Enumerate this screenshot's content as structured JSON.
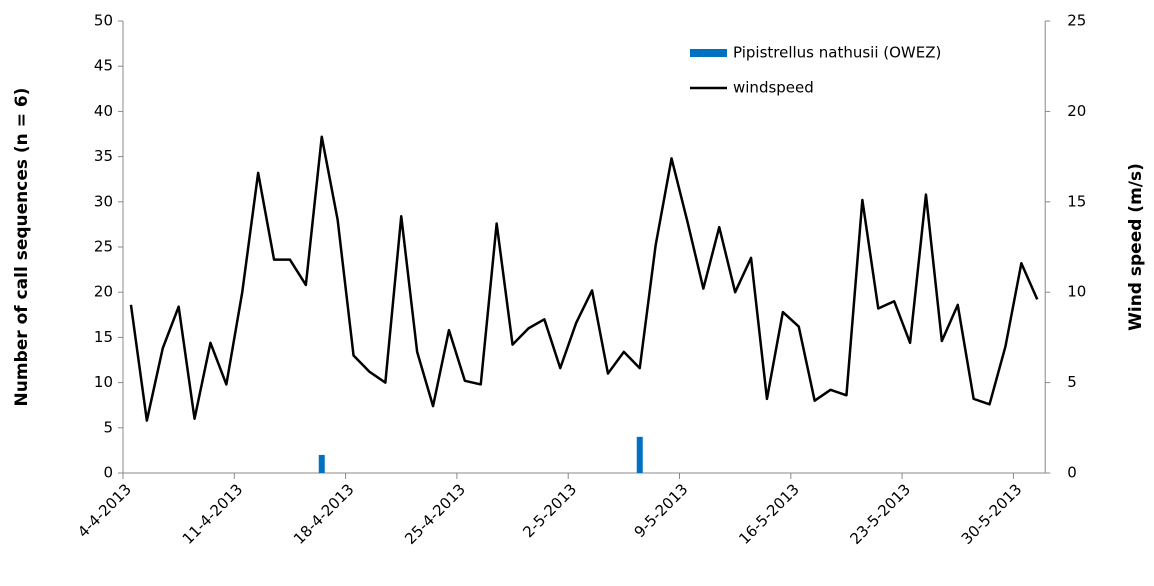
{
  "chart_data": {
    "type": "bar",
    "y_label": "Number of call sequences (n = 6)",
    "y2_label": "Wind speed (m/s)",
    "categories": [
      "4-4-2013",
      null,
      null,
      null,
      null,
      null,
      null,
      "11-4-2013",
      null,
      null,
      null,
      null,
      null,
      null,
      "18-4-2013",
      null,
      null,
      null,
      null,
      null,
      null,
      "25-4-2013",
      null,
      null,
      null,
      null,
      null,
      null,
      "2-5-2013",
      null,
      null,
      null,
      null,
      null,
      null,
      "9-5-2013",
      null,
      null,
      null,
      null,
      null,
      null,
      "16-5-2013",
      null,
      null,
      null,
      null,
      null,
      null,
      "23-5-2013",
      null,
      null,
      null,
      null,
      null,
      null,
      "30-5-2013",
      null
    ],
    "ylim": [
      0,
      50
    ],
    "yticks": [
      0,
      5,
      10,
      15,
      20,
      25,
      30,
      35,
      40,
      45,
      50
    ],
    "y2lim": [
      0,
      25
    ],
    "y2ticks": [
      0,
      5,
      10,
      15,
      20,
      25
    ],
    "grid": false,
    "legend": "top-right",
    "series": [
      {
        "name": "Pipistrellus nathusii (OWEZ)",
        "type": "bar",
        "color": "#0070c0",
        "values": [
          0,
          0,
          0,
          0,
          0,
          0,
          0,
          0,
          0,
          0,
          0,
          0,
          2,
          0,
          0,
          0,
          0,
          0,
          0,
          0,
          0,
          0,
          0,
          0,
          0,
          0,
          0,
          0,
          0,
          0,
          0,
          0,
          4,
          0,
          0,
          0,
          0,
          0,
          0,
          0,
          0,
          0,
          0,
          0,
          0,
          0,
          0,
          0,
          0,
          0,
          0,
          0,
          0,
          0,
          0,
          0,
          0,
          0
        ]
      },
      {
        "name": "windspeed",
        "type": "line",
        "axis": "y2",
        "color": "#000000",
        "values": [
          9.3,
          2.9,
          6.9,
          9.2,
          3.0,
          7.2,
          4.9,
          10.0,
          16.6,
          11.8,
          11.8,
          10.4,
          18.6,
          14.0,
          6.5,
          5.6,
          5.0,
          14.2,
          6.7,
          3.7,
          7.9,
          5.1,
          4.9,
          13.8,
          7.1,
          8.0,
          8.5,
          5.8,
          8.3,
          10.1,
          5.5,
          6.7,
          5.8,
          12.6,
          17.4,
          13.9,
          10.2,
          13.6,
          10.0,
          11.9,
          4.1,
          8.9,
          8.1,
          4.0,
          4.6,
          4.3,
          15.1,
          9.1,
          9.5,
          7.2,
          15.4,
          7.3,
          9.3,
          4.1,
          3.8,
          7.0,
          11.6,
          9.6
        ]
      }
    ]
  }
}
